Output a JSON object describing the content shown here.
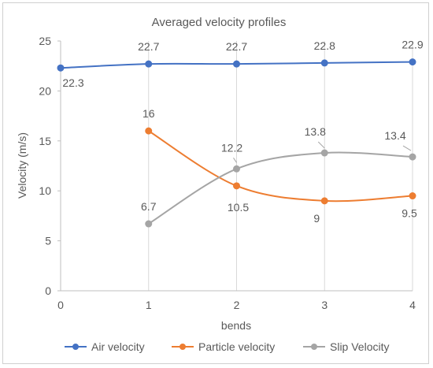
{
  "chart_data": {
    "type": "line",
    "title": "Averaged velocity profiles",
    "xlabel": "bends",
    "ylabel": "Velocity (m/s)",
    "xlim": [
      0,
      4
    ],
    "ylim": [
      0,
      25
    ],
    "x_ticks": [
      "0",
      "1",
      "2",
      "3",
      "4"
    ],
    "y_ticks": [
      "0",
      "5",
      "10",
      "15",
      "20",
      "25"
    ],
    "grid": "vertical gridlines",
    "legend_position": "bottom",
    "series": [
      {
        "name": "Air velocity",
        "color": "#4472C4",
        "x": [
          0,
          1,
          2,
          3,
          4
        ],
        "values": [
          22.3,
          22.7,
          22.7,
          22.8,
          22.9
        ],
        "labels": [
          "22.3",
          "22.7",
          "22.7",
          "22.8",
          "22.9"
        ]
      },
      {
        "name": "Particle velocity",
        "color": "#ED7D31",
        "x": [
          1,
          2,
          3,
          4
        ],
        "values": [
          16,
          10.5,
          9,
          9.5
        ],
        "labels": [
          "16",
          "10.5",
          "9",
          "9.5"
        ]
      },
      {
        "name": "Slip Velocity",
        "color": "#A5A5A5",
        "x": [
          1,
          2,
          3,
          4
        ],
        "values": [
          6.7,
          12.2,
          13.8,
          13.4
        ],
        "labels": [
          "6.7",
          "12.2",
          "13.8",
          "13.4"
        ]
      }
    ]
  }
}
